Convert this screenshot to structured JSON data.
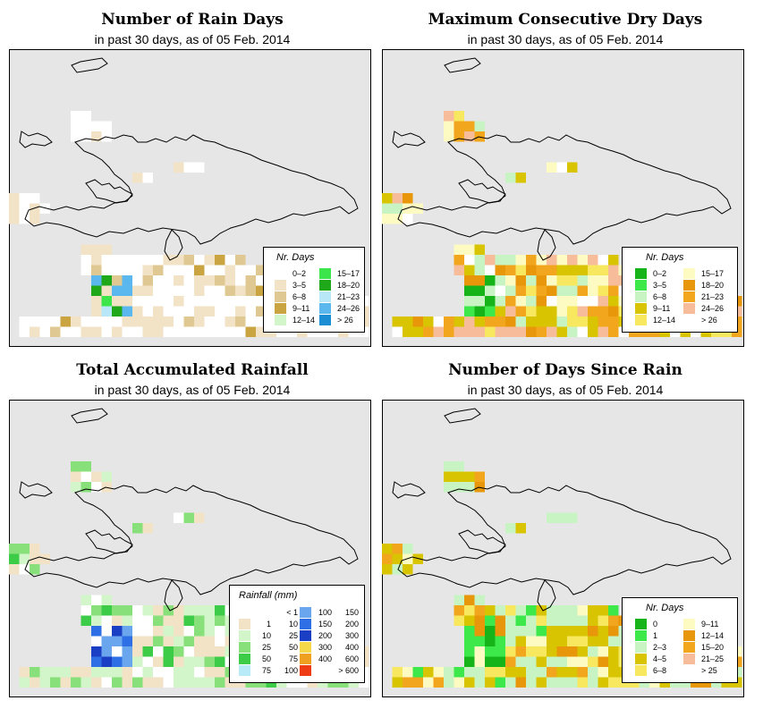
{
  "colors": {
    "background": "#e6e6e6",
    "border": "#000000",
    "island_outline": "#000000"
  },
  "panels": [
    {
      "title": "Number of Rain Days",
      "subtitle": "in past 30 days, as of  05 Feb. 2014",
      "legend": {
        "title": "Nr. Days",
        "items": [
          {
            "label": "0–2",
            "color": "#ffffff"
          },
          {
            "label": "3–5",
            "color": "#f2e2c6"
          },
          {
            "label": "6–8",
            "color": "#e0c893"
          },
          {
            "label": "9–11",
            "color": "#c9a440"
          },
          {
            "label": "12–14",
            "color": "#d2f6c9"
          },
          {
            "label": "15–17",
            "color": "#3ce64a"
          },
          {
            "label": "18–20",
            "color": "#1ea81a"
          },
          {
            "label": "21–23",
            "color": "#b8e8f8"
          },
          {
            "label": "24–26",
            "color": "#5ab8ee"
          },
          {
            "label": "> 26",
            "color": "#1c8fd4"
          }
        ]
      }
    },
    {
      "title": "Maximum Consecutive Dry Days",
      "subtitle": "in past 30 days, as of  05 Feb. 2014",
      "legend": {
        "title": "Nr. Days",
        "items": [
          {
            "label": "0–2",
            "color": "#16b418"
          },
          {
            "label": "3–5",
            "color": "#3de84a"
          },
          {
            "label": "6–8",
            "color": "#c8f4c4"
          },
          {
            "label": "9–11",
            "color": "#d8c400"
          },
          {
            "label": "12–14",
            "color": "#f8e860"
          },
          {
            "label": "15–17",
            "color": "#fdfac2"
          },
          {
            "label": "18–20",
            "color": "#e8960a"
          },
          {
            "label": "21–23",
            "color": "#f2a61e"
          },
          {
            "label": "24–26",
            "color": "#f7bd9a"
          },
          {
            "label": "> 26",
            "color": "#ffffff"
          }
        ]
      }
    },
    {
      "title": "Total Accumulated Rainfall",
      "subtitle": "in past 30 days, as of  05 Feb. 2014",
      "legend": {
        "title": "Rainfall (mm)",
        "items": [
          {
            "a": "",
            "b": "< 1",
            "color": "#ffffff"
          },
          {
            "a": "1",
            "b": "10",
            "color": "#f2e2c6"
          },
          {
            "a": "10",
            "b": "25",
            "color": "#d2f6c9"
          },
          {
            "a": "25",
            "b": "50",
            "color": "#88e07a"
          },
          {
            "a": "50",
            "b": "75",
            "color": "#3ccc48"
          },
          {
            "a": "75",
            "b": "100",
            "color": "#b8eaf8"
          },
          {
            "a": "100",
            "b": "150",
            "color": "#6aa6ee"
          },
          {
            "a": "150",
            "b": "200",
            "color": "#2e6fe6"
          },
          {
            "a": "200",
            "b": "300",
            "color": "#1a3fc4"
          },
          {
            "a": "300",
            "b": "400",
            "color": "#f4d84a"
          },
          {
            "a": "400",
            "b": "600",
            "color": "#f0a020"
          },
          {
            "a": "",
            "b": "> 600",
            "color": "#f03c14"
          }
        ]
      }
    },
    {
      "title": "Number of Days Since Rain",
      "subtitle": "in past 30 days, as of  05 Feb. 2014",
      "legend": {
        "title": "Nr. Days",
        "items": [
          {
            "label": "0",
            "color": "#16b418"
          },
          {
            "label": "1",
            "color": "#3de84a"
          },
          {
            "label": "2–3",
            "color": "#c8f4c4"
          },
          {
            "label": "4–5",
            "color": "#d8c400"
          },
          {
            "label": "6–8",
            "color": "#f8e860"
          },
          {
            "label": "9–11",
            "color": "#fdfac2"
          },
          {
            "label": "12–14",
            "color": "#e8960a"
          },
          {
            "label": "15–20",
            "color": "#f2a61e"
          },
          {
            "label": "21–25",
            "color": "#f7bd9a"
          },
          {
            "label": "> 25",
            "color": "#ffffff"
          }
        ]
      }
    }
  ]
}
